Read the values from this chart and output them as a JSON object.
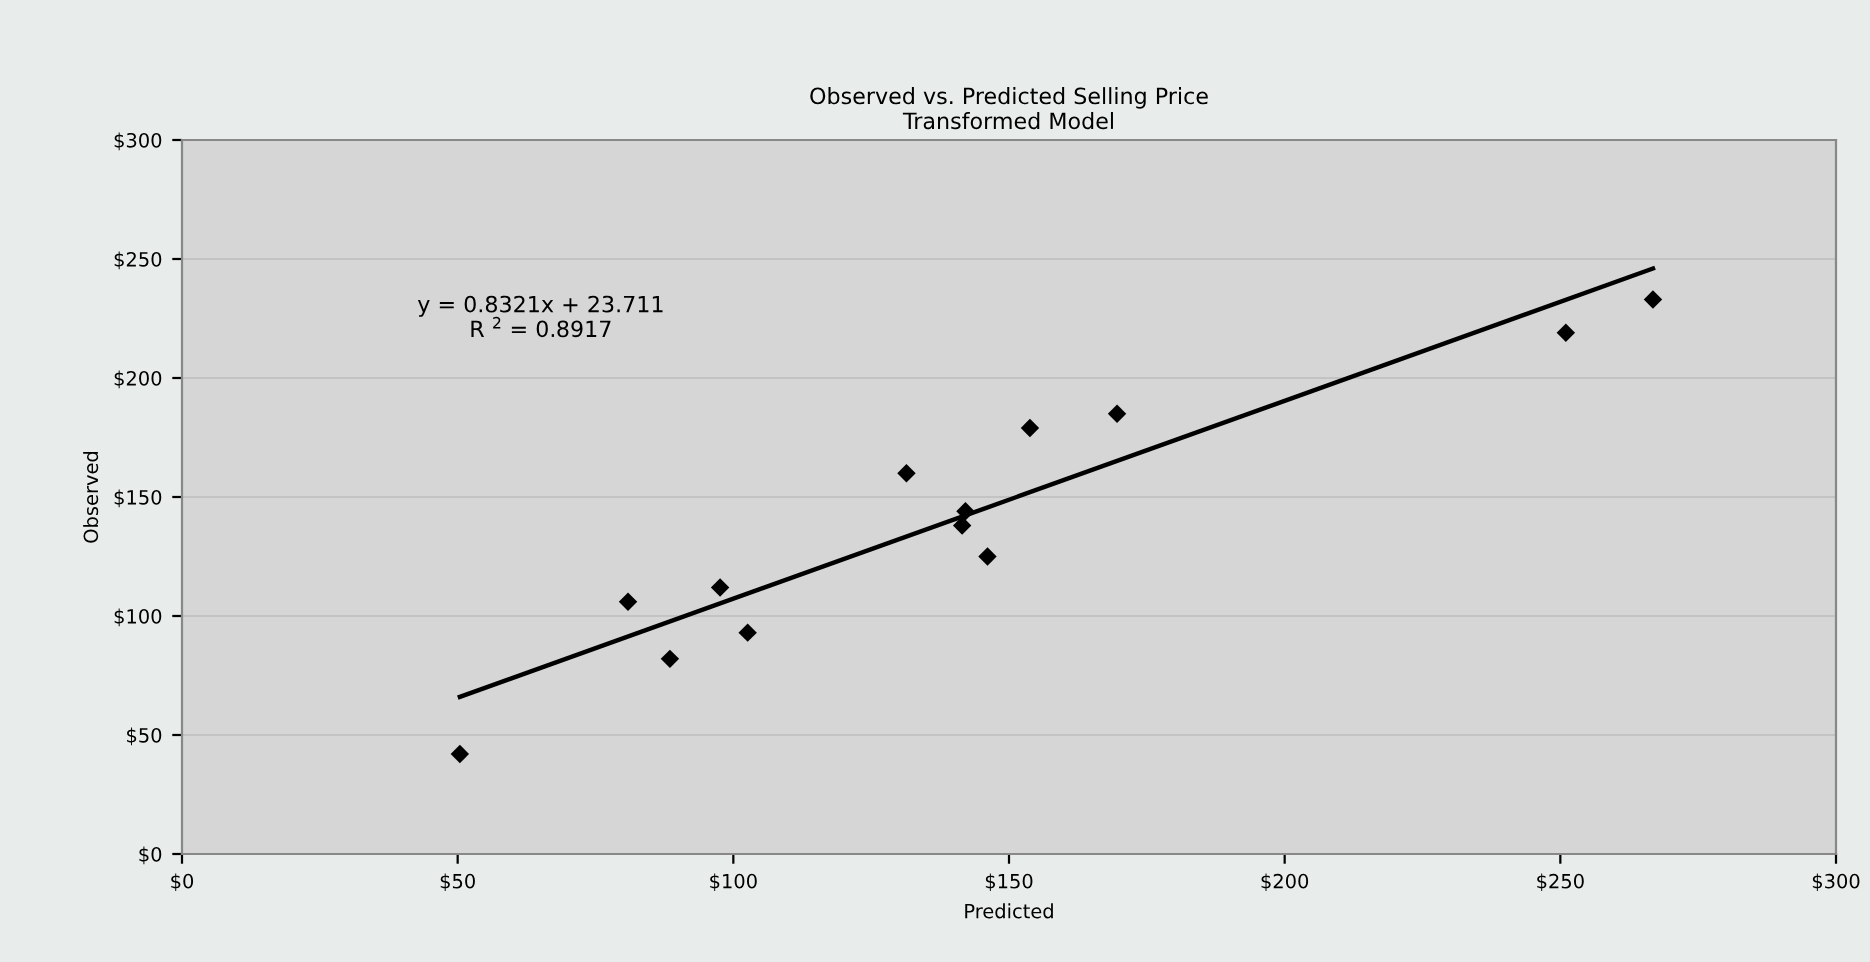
{
  "chart_data": {
    "type": "scatter",
    "title": "Observed vs. Predicted Selling Price\nTransformed Model",
    "xlabel": "Predicted",
    "ylabel": "Observed",
    "series": [
      {
        "color": "#000000",
        "marker": "diamond",
        "x": [
          50.4,
          80.9,
          88.5,
          97.6,
          102.6,
          131.4,
          142.1,
          141.5,
          146.1,
          153.8,
          169.6,
          251.0,
          266.8
        ],
        "values": [
          42,
          106,
          82,
          112,
          93,
          160,
          144,
          138,
          125,
          179,
          185,
          219,
          233
        ]
      },
      {
        "type": "line",
        "color": "#000000",
        "marker": "none",
        "line_style": "solid",
        "x": [
          50.4,
          266.8
        ],
        "values": [
          66,
          246
        ]
      }
    ],
    "annotations": [
      "y = 0.8321x + 23.711\nR $^{2}$ = 0.8917"
    ],
    "xlim": [
      0,
      300
    ],
    "ylim": [
      0,
      300
    ],
    "xticks": [
      {
        "value": 0,
        "label": "$0"
      },
      {
        "value": 50,
        "label": "$50"
      },
      {
        "value": 100,
        "label": "$100"
      },
      {
        "value": 150,
        "label": "$150"
      },
      {
        "value": 200,
        "label": "$200"
      },
      {
        "value": 250,
        "label": "$250"
      },
      {
        "value": 300,
        "label": "$300"
      }
    ],
    "yticks": [
      {
        "value": 0,
        "label": "$0"
      },
      {
        "value": 50,
        "label": "$50"
      },
      {
        "value": 100,
        "label": "$100"
      },
      {
        "value": 150,
        "label": "$150"
      },
      {
        "value": 200,
        "label": "$200"
      },
      {
        "value": 250,
        "label": "$250"
      },
      {
        "value": 300,
        "label": "$300"
      }
    ],
    "grid": "y",
    "legend": false
  }
}
